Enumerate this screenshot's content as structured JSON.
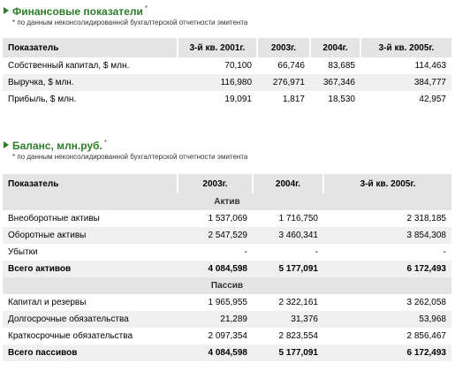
{
  "sections": [
    {
      "title": "Финансовые показатели",
      "title_mark": "*",
      "note": "* по данным неконсолидированной бухгалтерской отчетности эмитента",
      "table": {
        "header": [
          "Показатель",
          "3-й кв. 2001г.",
          "2003г.",
          "2004г.",
          "3-й кв. 2005г."
        ],
        "rows": [
          [
            "Собственный капитал, $ млн.",
            "70,100",
            "66,746",
            "83,685",
            "114,463"
          ],
          [
            "Выручка, $ млн.",
            "116,980",
            "276,971",
            "367,346",
            "384,777"
          ],
          [
            "Прибыль, $ млн.",
            "19,091",
            "1,817",
            "18,530",
            "42,957"
          ]
        ]
      }
    },
    {
      "title": "Баланс, млн.руб.",
      "title_mark": "*",
      "note": "* по данным неконсолидированной бухгалтерской отчетности эмитента",
      "table": {
        "header": [
          "Показатель",
          "2003г.",
          "2004г.",
          "3-й кв. 2005г."
        ],
        "groups": [
          {
            "label": "Актив",
            "rows": [
              [
                "Внеоборотные активы",
                "1 537,069",
                "1 716,750",
                "2 318,185"
              ],
              [
                "Оборотные активы",
                "2 547,529",
                "3 460,341",
                "3 854,308"
              ],
              [
                "Убытки",
                "-",
                "-",
                "-"
              ]
            ],
            "total": [
              "Всего активов",
              "4 084,598",
              "5 177,091",
              "6 172,493"
            ]
          },
          {
            "label": "Пассив",
            "rows": [
              [
                "Капитал и резервы",
                "1 965,955",
                "2 322,161",
                "3 262,058"
              ],
              [
                "Долгосрочные обязательства",
                "21,289",
                "31,376",
                "53,968"
              ],
              [
                "Краткосрочные обязательства",
                "2 097,354",
                "2 823,554",
                "2 856,467"
              ]
            ],
            "total": [
              "Всего пассивов",
              "4 084,598",
              "5 177,091",
              "6 172,493"
            ]
          }
        ]
      }
    }
  ]
}
